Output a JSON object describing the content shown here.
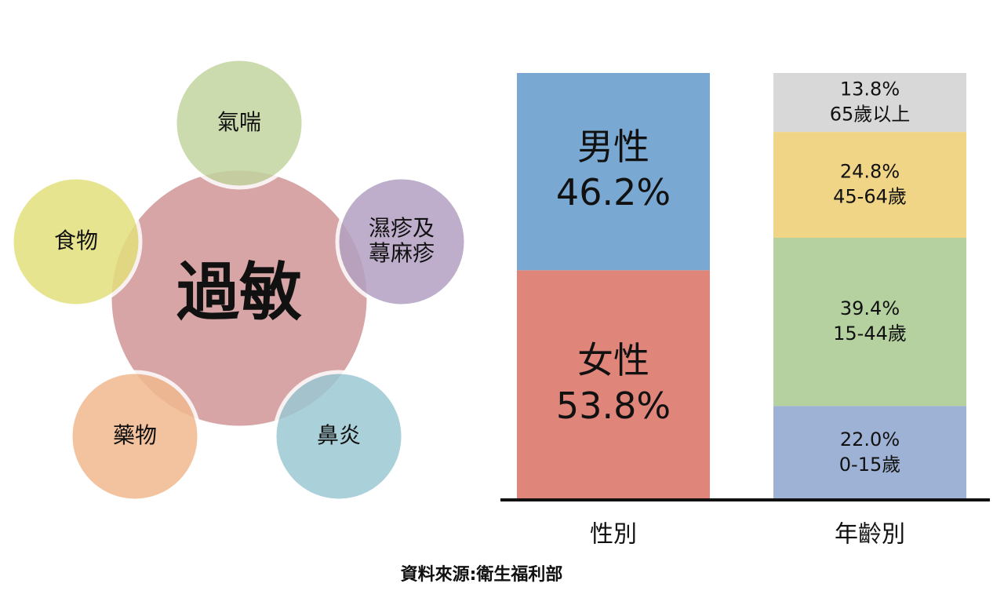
{
  "diagram": {
    "center": "過敏",
    "nodes": [
      {
        "label": [
          "氣喘"
        ],
        "color": "#c3d5a0"
      },
      {
        "label": [
          "濕疹及",
          "蕁麻疹"
        ],
        "color": "#b3a1c2"
      },
      {
        "label": [
          "鼻炎"
        ],
        "color": "#9cc8d3"
      },
      {
        "label": [
          "藥物"
        ],
        "color": "#f1b98f"
      },
      {
        "label": [
          "食物"
        ],
        "color": "#e3e07c"
      }
    ],
    "center_color": "#d39c9c"
  },
  "chart_data": {
    "type": "stacked_bar",
    "categories": [
      "性別",
      "年齡別"
    ],
    "ylim": [
      0,
      100
    ],
    "bars": [
      {
        "names": [
          "女性",
          "男性"
        ],
        "values": [
          53.8,
          46.2
        ],
        "value_labels": [
          "53.8%",
          "46.2%"
        ],
        "colors": [
          "#e0857a",
          "#79a9d3"
        ]
      },
      {
        "names": [
          "0-15歲",
          "15-44歲",
          "45-64歲",
          "65歲以上"
        ],
        "values": [
          22.0,
          39.4,
          24.8,
          13.8
        ],
        "value_labels": [
          "22.0%",
          "39.4%",
          "24.8%",
          "13.8%"
        ],
        "colors": [
          "#9db2d4",
          "#b5d1a0",
          "#efd585",
          "#d9d8d9"
        ]
      }
    ]
  },
  "source": "資料來源:衛生福利部"
}
